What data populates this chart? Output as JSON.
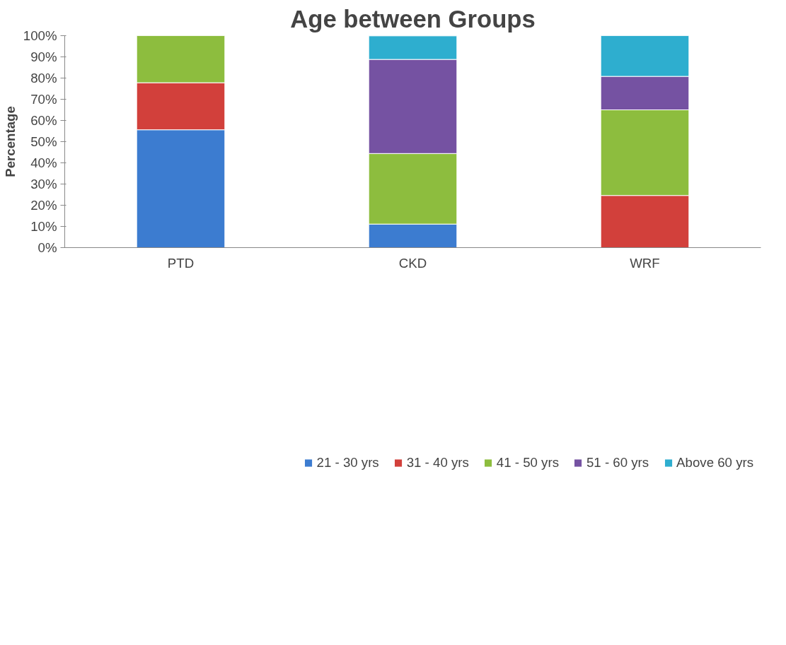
{
  "chart_data": {
    "type": "bar",
    "stacked": true,
    "title": "Age between Groups",
    "ylabel": "Percentage",
    "categories": [
      "PTD",
      "CKD",
      "WRF"
    ],
    "series": [
      {
        "name": "21 - 30 yrs",
        "color": "#3c7cd0",
        "values": [
          55.6,
          11.1,
          null
        ]
      },
      {
        "name": "31 - 40 yrs",
        "color": "#d2403b",
        "values": [
          22.2,
          null,
          24.6
        ]
      },
      {
        "name": "41 - 50 yrs",
        "color": "#8dbd3e",
        "values": [
          22.2,
          33.3,
          40.4
        ]
      },
      {
        "name": "51 - 60 yrs",
        "color": "#7552a2",
        "values": [
          null,
          44.4,
          15.8
        ]
      },
      {
        "name": "Above 60 yrs",
        "color": "#2eaecf",
        "values": [
          null,
          11.1,
          19.2
        ]
      }
    ],
    "ylim": [
      0,
      100
    ],
    "yticks": [
      {
        "value": 0,
        "label": "0%"
      },
      {
        "value": 10,
        "label": "10%"
      },
      {
        "value": 20,
        "label": "20%"
      },
      {
        "value": 30,
        "label": "30%"
      },
      {
        "value": 40,
        "label": "40%"
      },
      {
        "value": 50,
        "label": "50%"
      },
      {
        "value": 60,
        "label": "60%"
      },
      {
        "value": 70,
        "label": "70%"
      },
      {
        "value": 80,
        "label": "80%"
      },
      {
        "value": 90,
        "label": "90%"
      },
      {
        "value": 100,
        "label": "100%"
      }
    ],
    "grid": false,
    "legend": "bottom"
  }
}
